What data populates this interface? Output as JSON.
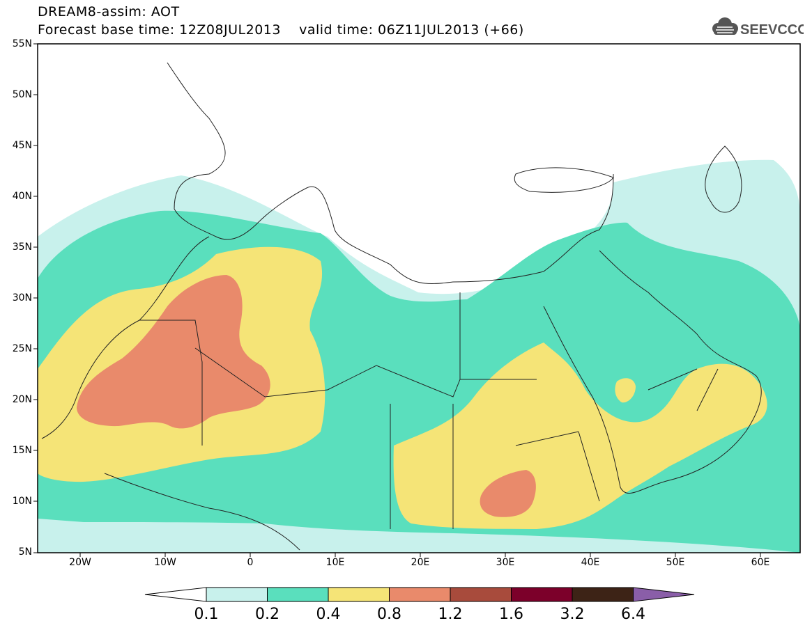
{
  "header": {
    "title": "DREAM8-assim: AOT",
    "subtitle": "Forecast base time: 12Z08JUL2013    valid time: 06Z11JUL2013 (+66)",
    "logo_text": "SEEVCCC"
  },
  "map": {
    "lat_labels": [
      "55N",
      "50N",
      "45N",
      "40N",
      "35N",
      "30N",
      "25N",
      "20N",
      "15N",
      "10N",
      "5N"
    ],
    "lon_labels": [
      "20W",
      "10W",
      "0",
      "10E",
      "20E",
      "30E",
      "40E",
      "50E",
      "60E"
    ],
    "extent": {
      "lon_min": -25,
      "lon_max": 65,
      "lat_min": 5,
      "lat_max": 55
    }
  },
  "colorbar": {
    "labels": [
      "0.1",
      "0.2",
      "0.4",
      "0.8",
      "1.2",
      "1.6",
      "3.2",
      "6.4"
    ],
    "colors": [
      "#ffffff",
      "#c8f1ec",
      "#5adfbd",
      "#f5e477",
      "#e98a6b",
      "#a84b3c",
      "#7c002a",
      "#3d2316",
      "#8a5ea8"
    ]
  }
}
